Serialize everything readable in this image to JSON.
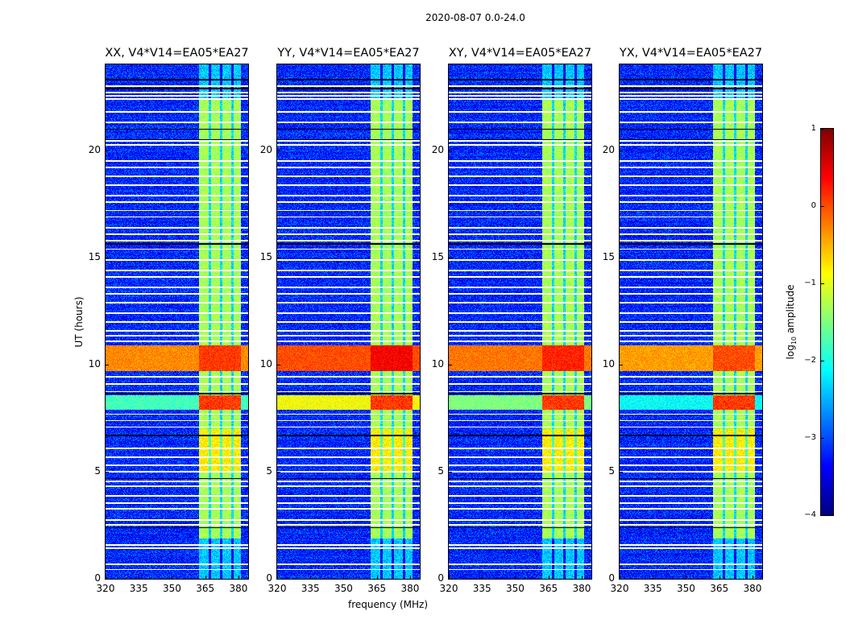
{
  "chart_data": {
    "type": "heatmap",
    "title": "2020-08-07 0.0-24.0",
    "xlabel": "frequency (MHz)",
    "ylabel": "UT (hours)",
    "xlim": [
      320,
      384.4
    ],
    "ylim": [
      0,
      24
    ],
    "xticks": [
      "320",
      "335",
      "350",
      "365",
      "380"
    ],
    "xtick_values": [
      320,
      335,
      350,
      365,
      380
    ],
    "yticks": [
      "0",
      "5",
      "10",
      "15",
      "20"
    ],
    "ytick_values": [
      0,
      5,
      10,
      15,
      20
    ],
    "panels": [
      {
        "title": "XX, V4*V14=EA05*EA27",
        "pol": "XX",
        "event_boost": 0.0
      },
      {
        "title": "YY, V4*V14=EA05*EA27",
        "pol": "YY",
        "event_boost": 0.3
      },
      {
        "title": "XY, V4*V14=EA05*EA27",
        "pol": "XY",
        "event_boost": 0.1
      },
      {
        "title": "YX, V4*V14=EA05*EA27",
        "pol": "YX",
        "event_boost": -0.1
      }
    ],
    "colorbar": {
      "label_main": "log",
      "label_sub": "10",
      "label_rest": " amplitude",
      "colormap": "jet",
      "range": [
        -4,
        1
      ],
      "ticks": [
        "1",
        "0",
        "−1",
        "−2",
        "−3",
        "−4"
      ],
      "tick_values": [
        1,
        0,
        -1,
        -2,
        -3,
        -4
      ]
    },
    "features": {
      "background_log_amp": -3.2,
      "band_mhz": [
        362,
        381
      ],
      "band_active_hours": [
        1.9,
        22.4
      ],
      "band_log_amp": -1.3,
      "band_dark_stripes_mhz": [
        367,
        372,
        377
      ],
      "strong_event_hours": [
        9.7,
        10.9
      ],
      "strong_event_log_amp": -0.3,
      "second_event_hours": [
        7.9,
        8.6
      ],
      "orange_band_hours": [
        5.0,
        7.0
      ],
      "flagged_hours": [
        0.45,
        0.7,
        1.45,
        1.6,
        2.55,
        2.75,
        3.3,
        3.55,
        3.9,
        4.35,
        4.55,
        5.0,
        5.3,
        5.7,
        6.1,
        7.1,
        7.4,
        7.7,
        8.75,
        9.1,
        9.45,
        11.1,
        11.35,
        11.6,
        12.0,
        12.4,
        12.9,
        13.3,
        13.6,
        14.1,
        14.4,
        14.9,
        15.4,
        15.8,
        16.1,
        16.4,
        16.9,
        17.2,
        17.6,
        17.9,
        18.4,
        18.8,
        19.2,
        19.5,
        20.25,
        20.45,
        21.3,
        21.8,
        22.4,
        22.55,
        22.7,
        23.0
      ],
      "dark_hours": [
        2.4,
        4.7,
        6.7,
        8.65,
        15.65,
        20.5,
        21.0,
        22.9,
        23.3
      ]
    }
  }
}
